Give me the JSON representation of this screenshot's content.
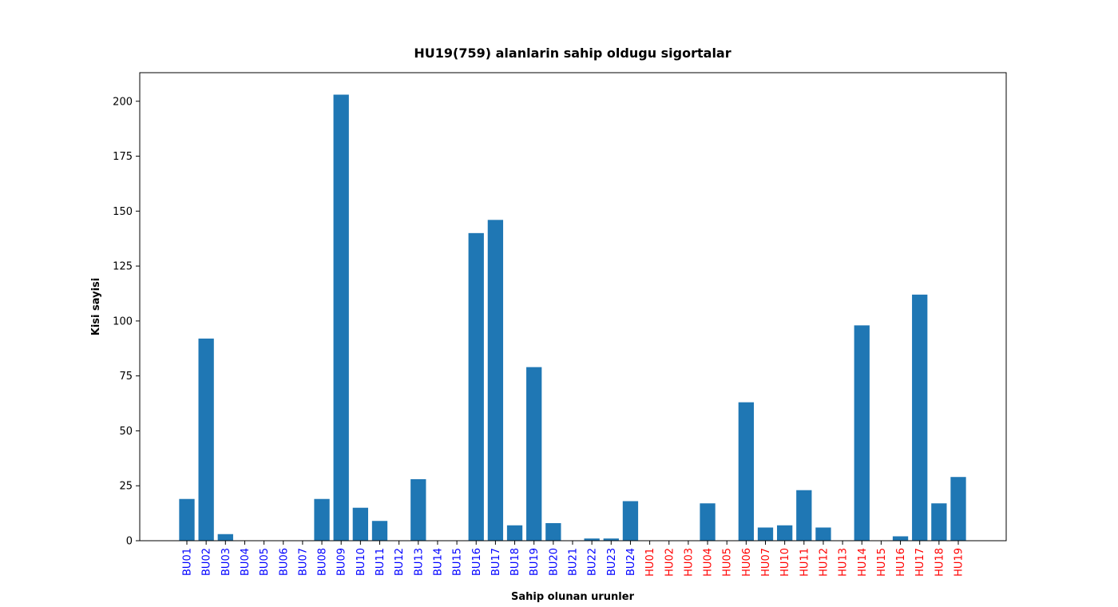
{
  "chart_data": {
    "type": "bar",
    "title": "HU19(759) alanlarin sahip oldugu sigortalar",
    "xlabel": "Sahip olunan urunler",
    "ylabel": "Kisi sayisi",
    "ylim": [
      0,
      213
    ],
    "yticks": [
      0,
      25,
      50,
      75,
      100,
      125,
      150,
      175,
      200
    ],
    "grid": false,
    "bar_color": "#1f77b4",
    "category_colors": {
      "BU": "#0000ff",
      "HU": "#ff0000"
    },
    "categories": [
      "BU01",
      "BU02",
      "BU03",
      "BU04",
      "BU05",
      "BU06",
      "BU07",
      "BU08",
      "BU09",
      "BU10",
      "BU11",
      "BU12",
      "BU13",
      "BU14",
      "BU15",
      "BU16",
      "BU17",
      "BU18",
      "BU19",
      "BU20",
      "BU21",
      "BU22",
      "BU23",
      "BU24",
      "HU01",
      "HU02",
      "HU03",
      "HU04",
      "HU05",
      "HU06",
      "HU07",
      "HU10",
      "HU11",
      "HU12",
      "HU13",
      "HU14",
      "HU15",
      "HU16",
      "HU17",
      "HU18",
      "HU19"
    ],
    "values": [
      19,
      92,
      3,
      0,
      0,
      0,
      0,
      19,
      203,
      15,
      9,
      0,
      28,
      0,
      0,
      140,
      146,
      7,
      79,
      8,
      0,
      1,
      1,
      18,
      0,
      0,
      0,
      17,
      0,
      63,
      6,
      7,
      23,
      6,
      0,
      98,
      0,
      2,
      112,
      17,
      29
    ]
  }
}
